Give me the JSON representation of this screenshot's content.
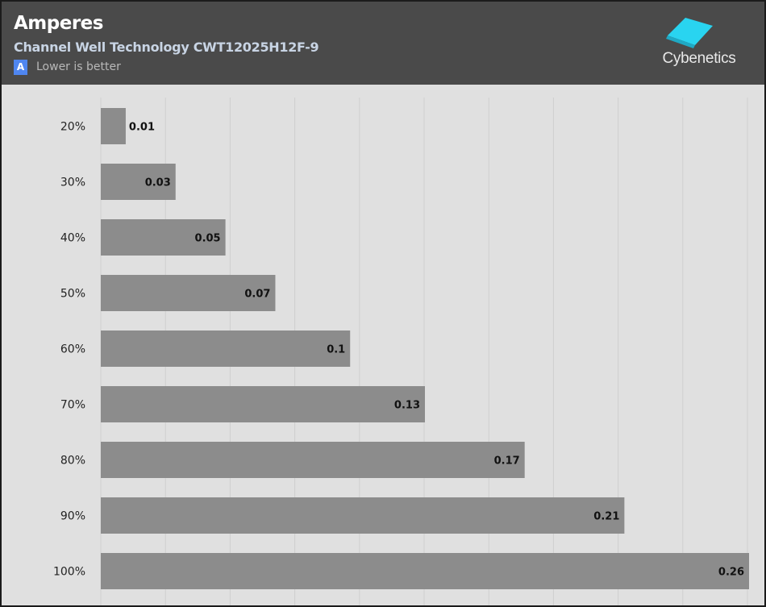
{
  "header": {
    "title": "Amperes",
    "subtitle": "Channel Well Technology CWT12025H12F-9",
    "badge": "A",
    "note": "Lower is better",
    "logo_text": "Cybenetics"
  },
  "colors": {
    "header_bg": "#4a4a4a",
    "plot_bg": "#e0e0e0",
    "bar": "#8c8c8c",
    "badge": "#4f86f0",
    "logo_accent": "#29d4f0"
  },
  "chart_data": {
    "type": "bar",
    "orientation": "horizontal",
    "categories": [
      "20%",
      "30%",
      "40%",
      "50%",
      "60%",
      "70%",
      "80%",
      "90%",
      "100%"
    ],
    "series": [
      {
        "values": [
          0.01,
          0.03,
          0.05,
          0.07,
          0.1,
          0.13,
          0.17,
          0.21,
          0.26
        ]
      }
    ],
    "xlim": [
      0,
      0.26
    ],
    "grid": true,
    "legend": "none",
    "title": "Amperes",
    "subtitle": "Channel Well Technology CWT12025H12F-9"
  }
}
